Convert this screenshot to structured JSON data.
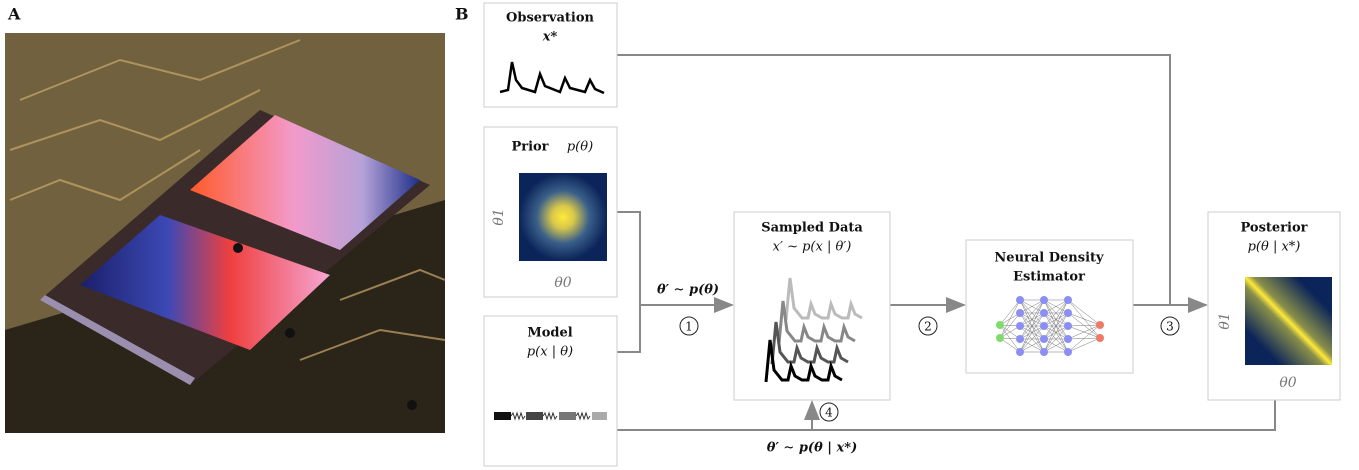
{
  "panels": {
    "a": {
      "label": "A"
    },
    "b": {
      "label": "B"
    }
  },
  "nodes": {
    "observation": {
      "title": "Observation",
      "formula": "x*"
    },
    "prior": {
      "title": "Prior",
      "formula": "p(θ)",
      "x_axis": "θ0",
      "y_axis": "θ1"
    },
    "model": {
      "title": "Model",
      "formula": "p(x | θ)"
    },
    "sampled": {
      "title": "Sampled Data",
      "formula": "x′ ∼ p(x | θ′)"
    },
    "estimator": {
      "title_line1": "Neural Density",
      "title_line2": "Estimator"
    },
    "posterior": {
      "title": "Posterior",
      "formula": "p(θ | x*)",
      "x_axis": "θ0",
      "y_axis": "θ1"
    }
  },
  "edges": {
    "prior_sample": "θ′ ∼ p(θ)",
    "posterior_sample": "θ′ ∼ p(θ | x*)"
  },
  "steps": [
    "1",
    "2",
    "3",
    "4"
  ]
}
